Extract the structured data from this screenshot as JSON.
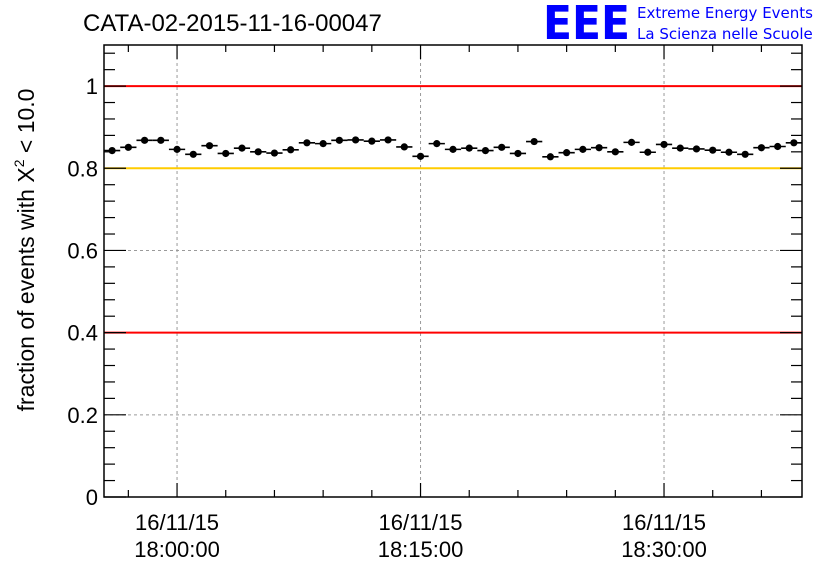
{
  "chart_data": {
    "type": "scatter",
    "title": "CATA-02-2015-11-16-00047",
    "ylabel_main": "fraction of events with X",
    "ylabel_superscript": "2",
    "ylabel_tail": " < 10.0",
    "xlabel": "",
    "ylim": [
      0,
      1.1
    ],
    "xlim": [
      -4.5,
      38.5
    ],
    "x_unit": "minutes after 16/11/15 18:00:00",
    "y_ticks": [
      0,
      0.2,
      0.4,
      0.6,
      0.8,
      1
    ],
    "y_tick_labels": [
      "0",
      "0.2",
      "0.4",
      "0.6",
      "0.8",
      "1"
    ],
    "x_ticks": [
      {
        "value": 0,
        "date": "16/11/15",
        "time": "18:00:00"
      },
      {
        "value": 15,
        "date": "16/11/15",
        "time": "18:15:00"
      },
      {
        "value": 30,
        "date": "16/11/15",
        "time": "18:30:00"
      }
    ],
    "grid": true,
    "reference_lines": [
      {
        "y": 1.0,
        "color": "#ff0000"
      },
      {
        "y": 0.8,
        "color": "#ffcc00"
      },
      {
        "y": 0.4,
        "color": "#ff0000"
      }
    ],
    "series": [
      {
        "x": [
          -4,
          -3,
          -2,
          -1,
          0,
          1,
          2,
          3,
          4,
          5,
          6,
          7,
          8,
          9,
          10,
          11,
          12,
          13,
          14,
          15,
          16,
          17,
          18,
          19,
          20,
          21,
          22,
          23,
          24,
          25,
          26,
          27,
          28,
          29,
          30,
          31,
          32,
          33,
          34,
          35,
          36,
          37,
          38
        ],
        "y": [
          0.843,
          0.851,
          0.868,
          0.868,
          0.846,
          0.834,
          0.855,
          0.836,
          0.849,
          0.84,
          0.837,
          0.845,
          0.862,
          0.86,
          0.868,
          0.869,
          0.866,
          0.869,
          0.852,
          0.829,
          0.86,
          0.846,
          0.849,
          0.843,
          0.851,
          0.836,
          0.865,
          0.828,
          0.838,
          0.846,
          0.85,
          0.84,
          0.863,
          0.839,
          0.858,
          0.849,
          0.847,
          0.844,
          0.839,
          0.834,
          0.85,
          0.853,
          0.862
        ],
        "y_error": 0.006,
        "x_halfwidth": 0.5,
        "color": "#000000"
      }
    ]
  },
  "logo": {
    "letters": "EEE",
    "line1": "Extreme Energy Events",
    "line2": "La Scienza nelle Scuole",
    "color": "#0000ff"
  }
}
